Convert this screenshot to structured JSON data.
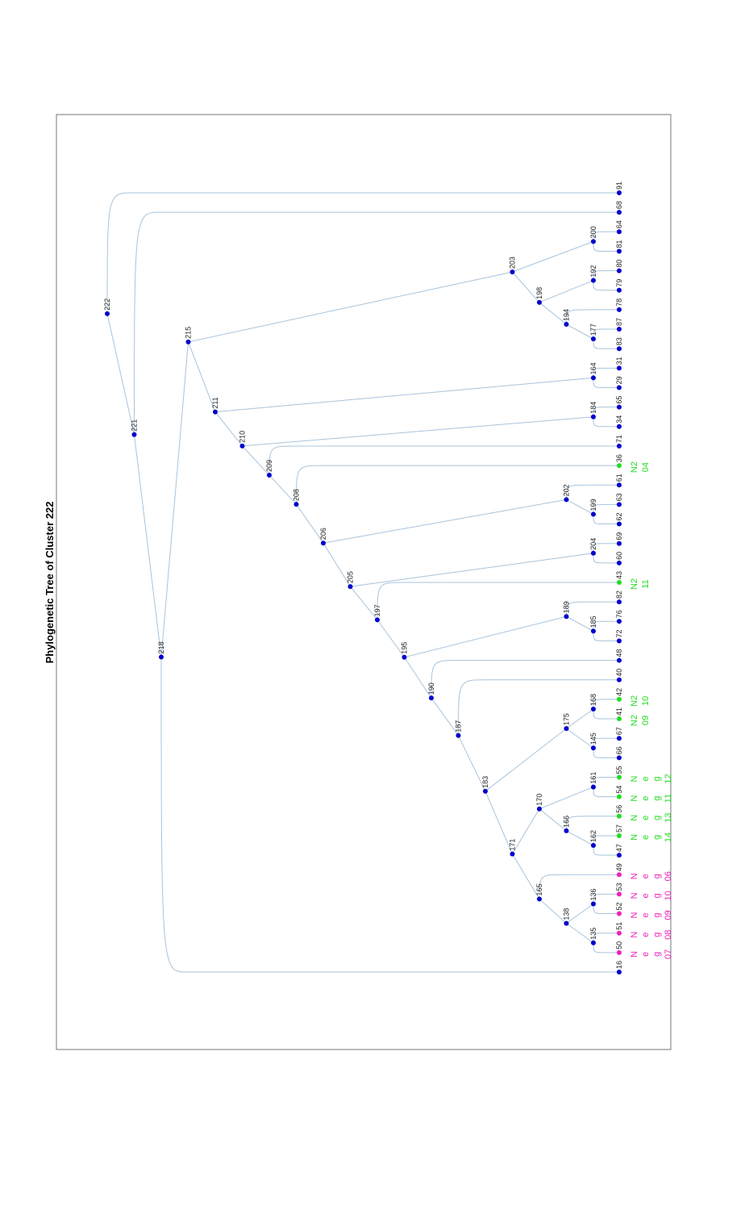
{
  "title": "Phylogenetic Tree of Cluster 222",
  "colors": {
    "node": "#0000cc",
    "green": "#22dd22",
    "magenta": "#ee22bb",
    "branch": "#a8c4dc"
  },
  "tree": {
    "root": "222",
    "tips": [
      "91",
      "68",
      "64",
      "81",
      "80",
      "79",
      "78",
      "87",
      "83",
      "31",
      "29",
      "65",
      "34",
      "71",
      "36",
      "61",
      "63",
      "62",
      "69",
      "60",
      "43",
      "82",
      "76",
      "72",
      "48",
      "40",
      "42",
      "41",
      "67",
      "66",
      "55",
      "54",
      "56",
      "57",
      "47",
      "49",
      "53",
      "52",
      "51",
      "50",
      "16"
    ],
    "internal_nodes": [
      {
        "id": "222",
        "depth": 0,
        "children": [
          "91",
          "221"
        ]
      },
      {
        "id": "221",
        "depth": 1,
        "children": [
          "68",
          "218"
        ]
      },
      {
        "id": "218",
        "depth": 2,
        "children": [
          "215",
          "16"
        ]
      },
      {
        "id": "215",
        "depth": 3,
        "children": [
          "203",
          "211"
        ]
      },
      {
        "id": "203",
        "depth": 15,
        "children": [
          "200",
          "198"
        ]
      },
      {
        "id": "200",
        "depth": 18,
        "children": [
          "64",
          "81"
        ]
      },
      {
        "id": "198",
        "depth": 16,
        "children": [
          "192",
          "194"
        ]
      },
      {
        "id": "192",
        "depth": 18,
        "children": [
          "80",
          "79"
        ]
      },
      {
        "id": "194",
        "depth": 17,
        "children": [
          "78",
          "177"
        ]
      },
      {
        "id": "177",
        "depth": 18,
        "children": [
          "87",
          "83"
        ]
      },
      {
        "id": "211",
        "depth": 4,
        "children": [
          "164",
          "210"
        ]
      },
      {
        "id": "164",
        "depth": 18,
        "children": [
          "31",
          "29"
        ]
      },
      {
        "id": "210",
        "depth": 5,
        "children": [
          "184",
          "209"
        ]
      },
      {
        "id": "184",
        "depth": 18,
        "children": [
          "65",
          "34"
        ]
      },
      {
        "id": "209",
        "depth": 6,
        "children": [
          "71",
          "208"
        ]
      },
      {
        "id": "208",
        "depth": 7,
        "children": [
          "36",
          "206"
        ]
      },
      {
        "id": "206",
        "depth": 8,
        "children": [
          "202",
          "205"
        ]
      },
      {
        "id": "202",
        "depth": 17,
        "children": [
          "61",
          "199"
        ]
      },
      {
        "id": "199",
        "depth": 18,
        "children": [
          "63",
          "62"
        ]
      },
      {
        "id": "205",
        "depth": 9,
        "children": [
          "204",
          "197"
        ]
      },
      {
        "id": "204",
        "depth": 18,
        "children": [
          "69",
          "60"
        ]
      },
      {
        "id": "197",
        "depth": 10,
        "children": [
          "43",
          "195"
        ]
      },
      {
        "id": "195",
        "depth": 11,
        "children": [
          "189",
          "190"
        ]
      },
      {
        "id": "189",
        "depth": 17,
        "children": [
          "82",
          "185"
        ]
      },
      {
        "id": "185",
        "depth": 18,
        "children": [
          "76",
          "72"
        ]
      },
      {
        "id": "190",
        "depth": 12,
        "children": [
          "48",
          "187"
        ]
      },
      {
        "id": "187",
        "depth": 13,
        "children": [
          "40",
          "183"
        ]
      },
      {
        "id": "183",
        "depth": 14,
        "children": [
          "175",
          "171"
        ]
      },
      {
        "id": "175",
        "depth": 17,
        "children": [
          "168",
          "145"
        ]
      },
      {
        "id": "168",
        "depth": 18,
        "children": [
          "42",
          "41"
        ]
      },
      {
        "id": "145",
        "depth": 18,
        "children": [
          "67",
          "66"
        ]
      },
      {
        "id": "171",
        "depth": 15,
        "children": [
          "170",
          "165"
        ]
      },
      {
        "id": "170",
        "depth": 16,
        "children": [
          "161",
          "166"
        ]
      },
      {
        "id": "161",
        "depth": 18,
        "children": [
          "55",
          "54"
        ]
      },
      {
        "id": "166",
        "depth": 17,
        "children": [
          "56",
          "162"
        ]
      },
      {
        "id": "162",
        "depth": 18,
        "children": [
          "57",
          "47"
        ]
      },
      {
        "id": "165",
        "depth": 16,
        "children": [
          "49",
          "138"
        ]
      },
      {
        "id": "138",
        "depth": 17,
        "children": [
          "136",
          "135"
        ]
      },
      {
        "id": "136",
        "depth": 18,
        "children": [
          "53",
          "52"
        ]
      },
      {
        "id": "135",
        "depth": 18,
        "children": [
          "51",
          "50"
        ]
      }
    ],
    "tip_colors": {
      "36": "green",
      "43": "green",
      "42": "green",
      "41": "green",
      "55": "green",
      "54": "green",
      "56": "green",
      "57": "green",
      "49": "magenta",
      "53": "magenta",
      "52": "magenta",
      "51": "magenta",
      "50": "magenta"
    },
    "annotations": {
      "36": [
        "N2",
        "04"
      ],
      "43": [
        "N2",
        "11"
      ],
      "42": [
        "N2",
        "10"
      ],
      "41": [
        "N2",
        "09"
      ],
      "55": [
        "N",
        "e",
        "g",
        "12"
      ],
      "54": [
        "N",
        "e",
        "g",
        "11"
      ],
      "56": [
        "N",
        "e",
        "g",
        "13"
      ],
      "57": [
        "N",
        "e",
        "g",
        "14"
      ],
      "49": [
        "N",
        "e",
        "g",
        "06"
      ],
      "53": [
        "N",
        "e",
        "g",
        "10"
      ],
      "52": [
        "N",
        "e",
        "g",
        "09"
      ],
      "51": [
        "N",
        "e",
        "g",
        "08"
      ],
      "50": [
        "N",
        "e",
        "g",
        "07"
      ]
    }
  }
}
